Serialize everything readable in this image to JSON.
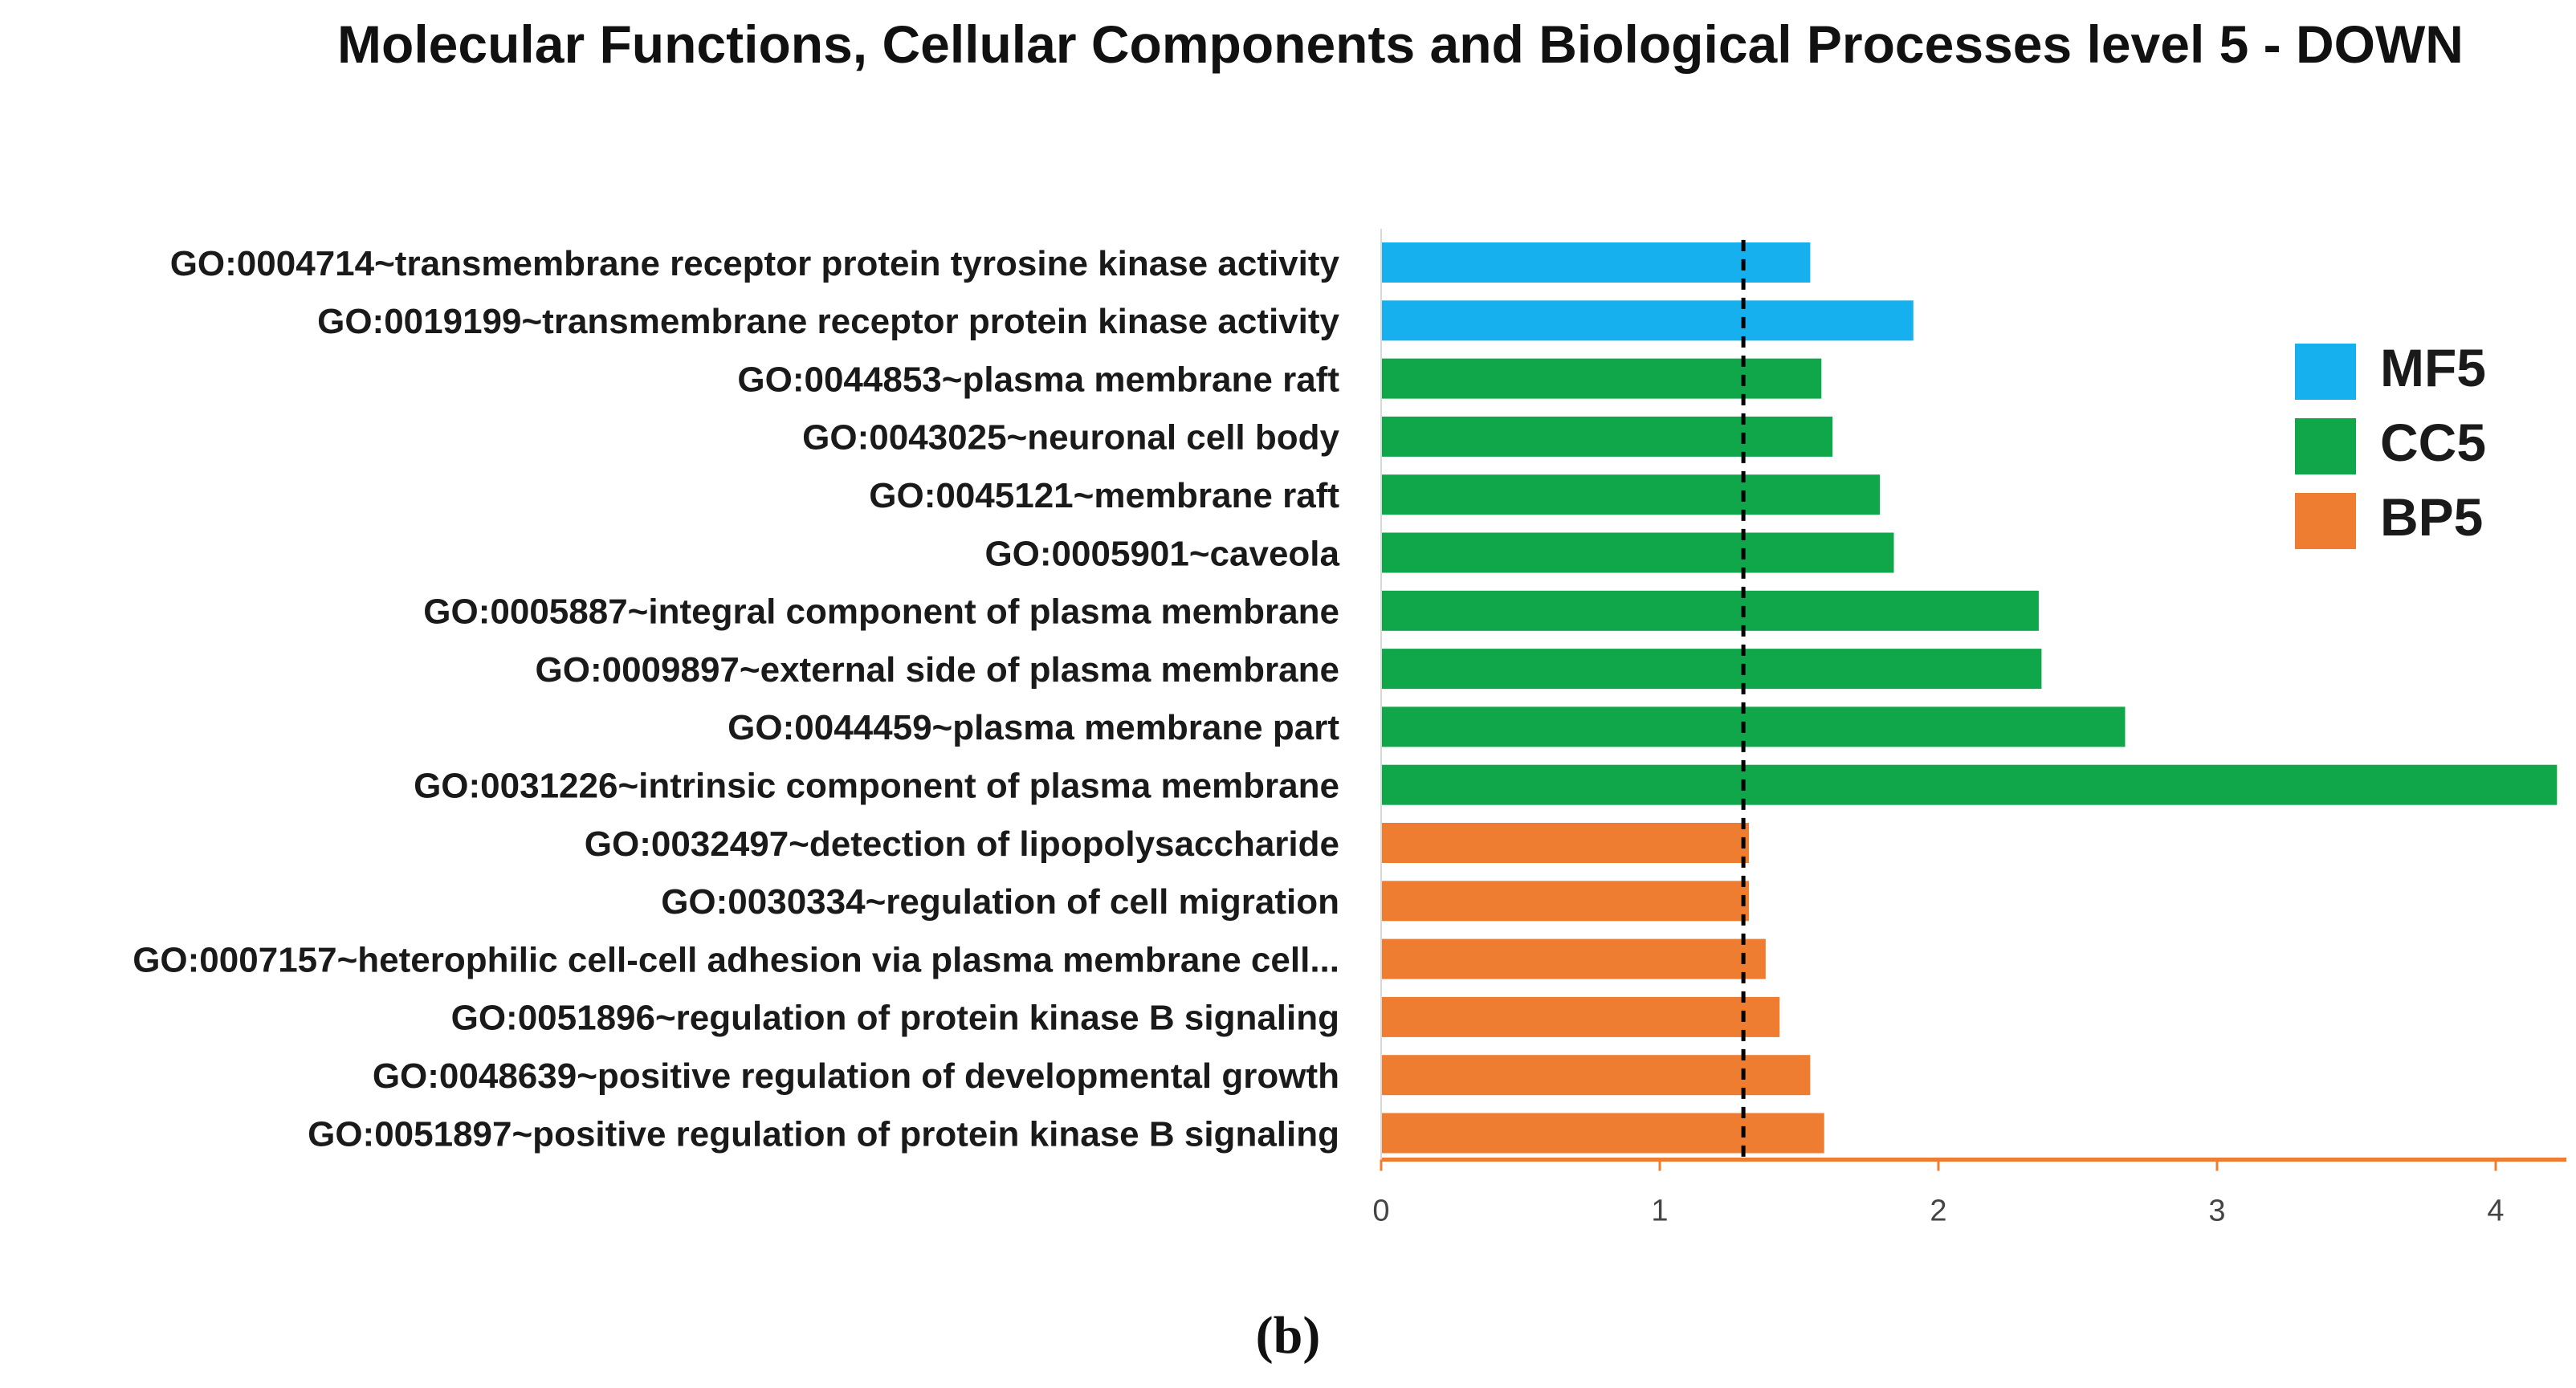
{
  "chart_data": {
    "type": "bar",
    "orientation": "horizontal",
    "title": "Molecular Functions, Cellular Components and Biological Processes level 5 - DOWN",
    "xlabel": "",
    "ylabel": "",
    "xlim": [
      0,
      4.2
    ],
    "xticks": [
      "0",
      "1",
      "2",
      "3",
      "4"
    ],
    "threshold": 1.3,
    "legend_position": "right",
    "grid": false,
    "colors": {
      "MF5": "#17b0ef",
      "CC5": "#10a64a",
      "BP5": "#ef7d31",
      "axis": "#ef7d31",
      "threshold_line": "#000000"
    },
    "legend": [
      {
        "name": "MF5",
        "color": "#17b0ef"
      },
      {
        "name": "CC5",
        "color": "#10a64a"
      },
      {
        "name": "BP5",
        "color": "#ef7d31"
      }
    ],
    "categories": [
      "GO:0004714~transmembrane receptor protein tyrosine kinase activity",
      "GO:0019199~transmembrane receptor protein kinase activity",
      "GO:0044853~plasma membrane raft",
      "GO:0043025~neuronal cell body",
      "GO:0045121~membrane raft",
      "GO:0005901~caveola",
      "GO:0005887~integral component of plasma membrane",
      "GO:0009897~external side of plasma membrane",
      "GO:0044459~plasma membrane part",
      "GO:0031226~intrinsic component of plasma membrane",
      "GO:0032497~detection of lipopolysaccharide",
      "GO:0030334~regulation of cell migration",
      "GO:0007157~heterophilic cell-cell adhesion via plasma membrane cell...",
      "GO:0051896~regulation of protein kinase B signaling",
      "GO:0048639~positive regulation of developmental growth",
      "GO:0051897~positive regulation of protein kinase B signaling"
    ],
    "values": [
      1.54,
      1.91,
      1.58,
      1.62,
      1.79,
      1.84,
      2.36,
      2.37,
      2.67,
      4.22,
      1.32,
      1.32,
      1.38,
      1.43,
      1.54,
      1.59
    ],
    "groups": [
      "MF5",
      "MF5",
      "CC5",
      "CC5",
      "CC5",
      "CC5",
      "CC5",
      "CC5",
      "CC5",
      "CC5",
      "BP5",
      "BP5",
      "BP5",
      "BP5",
      "BP5",
      "BP5"
    ]
  },
  "caption": "(b)"
}
